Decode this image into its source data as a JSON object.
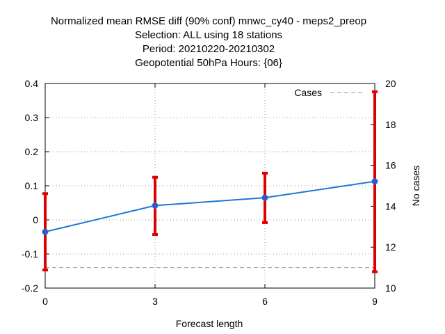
{
  "chart_data": {
    "type": "line",
    "title_lines": [
      "Normalized mean RMSE diff (90% conf) mnwc_cy40 - meps2_preop",
      "Selection: ALL using    18 stations",
      "Period: 20210220-20210302",
      "Geopotential 50hPa   Hours: {06}"
    ],
    "xlabel": "Forecast length",
    "ylabel": "",
    "y2label": "No cases",
    "x_ticks": [
      0,
      3,
      6,
      9
    ],
    "y_ticks": [
      "-0.2",
      "-0.1",
      "0",
      "0.1",
      "0.2",
      "0.3",
      "0.4"
    ],
    "y2_ticks": [
      "10",
      "12",
      "14",
      "16",
      "18",
      "20"
    ],
    "xlim": [
      0,
      9
    ],
    "ylim": [
      -0.2,
      0.4
    ],
    "y2lim": [
      10,
      20
    ],
    "grid": true,
    "legend_position": "top-right",
    "series": [
      {
        "x": [
          0,
          3,
          6,
          9
        ],
        "y": [
          -0.035,
          0.042,
          0.065,
          0.113
        ],
        "err_low": [
          -0.147,
          -0.043,
          -0.008,
          -0.152
        ],
        "err_high": [
          0.077,
          0.125,
          0.137,
          0.376
        ],
        "color": "#1f77d4",
        "marker_color": "#3355cc",
        "errorbar_color": "#dd0000"
      },
      {
        "name": "Cases",
        "axis": "y2",
        "x": [
          0,
          3,
          6,
          9
        ],
        "y": [
          11,
          11,
          11,
          11
        ],
        "color": "#999999",
        "dash": true
      }
    ]
  }
}
